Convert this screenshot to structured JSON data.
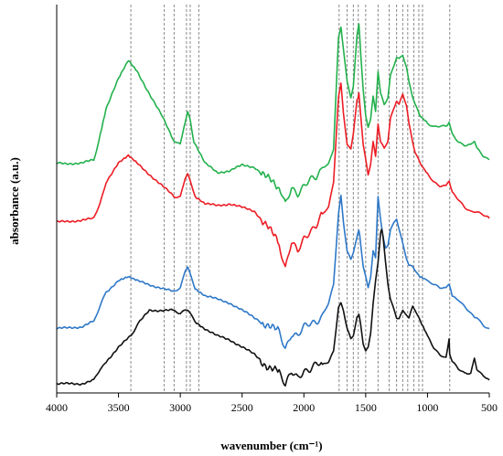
{
  "chart_data": {
    "type": "line",
    "title": "",
    "xlabel": "wavenumber (cm⁻¹)",
    "ylabel": "absorbance (a.u.)",
    "xlim": [
      4000,
      500
    ],
    "x_reversed": true,
    "x_ticks": [
      4000,
      3500,
      3000,
      2500,
      2000,
      1500,
      1000,
      500
    ],
    "y_ticks_shown": false,
    "ylim": [
      0,
      100
    ],
    "grid": false,
    "legend": "none",
    "reference_lines": [
      3400,
      3130,
      3050,
      2950,
      2920,
      2850,
      1715,
      1650,
      1600,
      1560,
      1500,
      1400,
      1310,
      1250,
      1200,
      1160,
      1110,
      1070,
      1040,
      820
    ],
    "series": [
      {
        "color": "#22b14c",
        "points": [
          [
            4000,
            60
          ],
          [
            3800,
            60
          ],
          [
            3700,
            61
          ],
          [
            3660,
            66
          ],
          [
            3600,
            75
          ],
          [
            3500,
            83
          ],
          [
            3420,
            88
          ],
          [
            3350,
            85
          ],
          [
            3250,
            79
          ],
          [
            3150,
            73
          ],
          [
            3050,
            66
          ],
          [
            3000,
            65
          ],
          [
            2970,
            70
          ],
          [
            2940,
            74
          ],
          [
            2920,
            72
          ],
          [
            2890,
            66
          ],
          [
            2800,
            60
          ],
          [
            2700,
            57.5
          ],
          [
            2600,
            58
          ],
          [
            2500,
            59.5
          ],
          [
            2400,
            59
          ],
          [
            2300,
            56
          ],
          [
            2200,
            53
          ],
          [
            2150,
            49
          ],
          [
            2100,
            54
          ],
          [
            2050,
            52
          ],
          [
            2000,
            53.5
          ],
          [
            1950,
            55
          ],
          [
            1900,
            56
          ],
          [
            1850,
            59
          ],
          [
            1800,
            60
          ],
          [
            1760,
            64
          ],
          [
            1720,
            94
          ],
          [
            1700,
            97
          ],
          [
            1680,
            91
          ],
          [
            1650,
            82
          ],
          [
            1620,
            78
          ],
          [
            1600,
            81
          ],
          [
            1570,
            95
          ],
          [
            1555,
            98
          ],
          [
            1540,
            90
          ],
          [
            1520,
            80
          ],
          [
            1500,
            73
          ],
          [
            1480,
            70
          ],
          [
            1460,
            72
          ],
          [
            1440,
            78
          ],
          [
            1420,
            74
          ],
          [
            1400,
            85
          ],
          [
            1380,
            79
          ],
          [
            1350,
            76
          ],
          [
            1320,
            78
          ],
          [
            1300,
            84
          ],
          [
            1270,
            87
          ],
          [
            1250,
            89
          ],
          [
            1230,
            88.5
          ],
          [
            1200,
            89.5
          ],
          [
            1170,
            86
          ],
          [
            1150,
            82
          ],
          [
            1120,
            78
          ],
          [
            1100,
            76
          ],
          [
            1060,
            73
          ],
          [
            1000,
            71
          ],
          [
            950,
            70
          ],
          [
            900,
            70
          ],
          [
            850,
            70
          ],
          [
            825,
            71
          ],
          [
            800,
            68
          ],
          [
            750,
            66
          ],
          [
            700,
            65
          ],
          [
            650,
            65
          ],
          [
            620,
            66
          ],
          [
            600,
            64
          ],
          [
            550,
            62
          ],
          [
            500,
            61
          ]
        ]
      },
      {
        "color": "#ed1c24",
        "points": [
          [
            4000,
            44
          ],
          [
            3800,
            44.5
          ],
          [
            3700,
            45
          ],
          [
            3650,
            49
          ],
          [
            3600,
            55
          ],
          [
            3500,
            60
          ],
          [
            3420,
            62
          ],
          [
            3350,
            60
          ],
          [
            3250,
            57
          ],
          [
            3150,
            54
          ],
          [
            3050,
            51
          ],
          [
            3000,
            51
          ],
          [
            2960,
            56
          ],
          [
            2940,
            57
          ],
          [
            2920,
            55
          ],
          [
            2880,
            51
          ],
          [
            2800,
            49
          ],
          [
            2700,
            48.5
          ],
          [
            2600,
            49
          ],
          [
            2500,
            48
          ],
          [
            2400,
            47
          ],
          [
            2300,
            43
          ],
          [
            2200,
            38
          ],
          [
            2150,
            31
          ],
          [
            2100,
            38
          ],
          [
            2050,
            36
          ],
          [
            2000,
            40
          ],
          [
            1950,
            42
          ],
          [
            1900,
            43
          ],
          [
            1850,
            46
          ],
          [
            1800,
            48
          ],
          [
            1760,
            55
          ],
          [
            1720,
            78
          ],
          [
            1700,
            82
          ],
          [
            1680,
            74
          ],
          [
            1650,
            65
          ],
          [
            1620,
            64
          ],
          [
            1600,
            68
          ],
          [
            1570,
            77
          ],
          [
            1555,
            79
          ],
          [
            1540,
            73
          ],
          [
            1520,
            65
          ],
          [
            1500,
            61
          ],
          [
            1480,
            57
          ],
          [
            1460,
            60
          ],
          [
            1440,
            66
          ],
          [
            1420,
            62
          ],
          [
            1400,
            71
          ],
          [
            1380,
            66
          ],
          [
            1350,
            64
          ],
          [
            1320,
            66
          ],
          [
            1300,
            72
          ],
          [
            1270,
            75
          ],
          [
            1250,
            77
          ],
          [
            1230,
            76
          ],
          [
            1200,
            79
          ],
          [
            1170,
            76
          ],
          [
            1150,
            71
          ],
          [
            1120,
            66
          ],
          [
            1100,
            63
          ],
          [
            1060,
            60
          ],
          [
            1000,
            57
          ],
          [
            950,
            55
          ],
          [
            900,
            54
          ],
          [
            850,
            54
          ],
          [
            825,
            55
          ],
          [
            800,
            52
          ],
          [
            750,
            50
          ],
          [
            700,
            48
          ],
          [
            650,
            47
          ],
          [
            620,
            47
          ],
          [
            600,
            47
          ],
          [
            550,
            46
          ],
          [
            500,
            45
          ]
        ]
      },
      {
        "color": "#2e78c8",
        "points": [
          [
            4000,
            15
          ],
          [
            3800,
            15.5
          ],
          [
            3700,
            17
          ],
          [
            3650,
            21
          ],
          [
            3600,
            25
          ],
          [
            3500,
            28
          ],
          [
            3420,
            29
          ],
          [
            3350,
            28
          ],
          [
            3250,
            27
          ],
          [
            3150,
            26
          ],
          [
            3050,
            25
          ],
          [
            3000,
            26
          ],
          [
            2960,
            31
          ],
          [
            2940,
            32
          ],
          [
            2920,
            30
          ],
          [
            2880,
            26
          ],
          [
            2800,
            24
          ],
          [
            2700,
            23
          ],
          [
            2600,
            22
          ],
          [
            2500,
            20
          ],
          [
            2400,
            18
          ],
          [
            2300,
            16
          ],
          [
            2200,
            14
          ],
          [
            2150,
            10
          ],
          [
            2100,
            14
          ],
          [
            2050,
            13
          ],
          [
            2000,
            15
          ],
          [
            1950,
            16
          ],
          [
            1900,
            17
          ],
          [
            1850,
            19
          ],
          [
            1800,
            22
          ],
          [
            1760,
            27
          ],
          [
            1720,
            46
          ],
          [
            1700,
            51
          ],
          [
            1680,
            44
          ],
          [
            1650,
            36
          ],
          [
            1620,
            34
          ],
          [
            1600,
            36
          ],
          [
            1570,
            40
          ],
          [
            1555,
            42
          ],
          [
            1540,
            38
          ],
          [
            1520,
            32
          ],
          [
            1500,
            29
          ],
          [
            1480,
            26
          ],
          [
            1460,
            29
          ],
          [
            1440,
            36
          ],
          [
            1420,
            34
          ],
          [
            1400,
            51
          ],
          [
            1380,
            45
          ],
          [
            1360,
            40
          ],
          [
            1340,
            37
          ],
          [
            1320,
            38
          ],
          [
            1300,
            42
          ],
          [
            1270,
            44
          ],
          [
            1250,
            45
          ],
          [
            1230,
            42
          ],
          [
            1200,
            38
          ],
          [
            1170,
            34
          ],
          [
            1150,
            32
          ],
          [
            1120,
            32
          ],
          [
            1100,
            31
          ],
          [
            1060,
            29
          ],
          [
            1000,
            28
          ],
          [
            950,
            27
          ],
          [
            900,
            26
          ],
          [
            850,
            26
          ],
          [
            825,
            27
          ],
          [
            800,
            24
          ],
          [
            750,
            23
          ],
          [
            700,
            21
          ],
          [
            650,
            19
          ],
          [
            620,
            18
          ],
          [
            600,
            18
          ],
          [
            550,
            16
          ],
          [
            500,
            15
          ]
        ]
      },
      {
        "color": "#111111",
        "points": [
          [
            4000,
            0
          ],
          [
            3800,
            0
          ],
          [
            3700,
            1
          ],
          [
            3650,
            4
          ],
          [
            3600,
            6
          ],
          [
            3500,
            10
          ],
          [
            3400,
            13
          ],
          [
            3350,
            16
          ],
          [
            3250,
            20
          ],
          [
            3150,
            20
          ],
          [
            3050,
            20
          ],
          [
            3000,
            19
          ],
          [
            2960,
            20
          ],
          [
            2940,
            20
          ],
          [
            2920,
            19
          ],
          [
            2880,
            17
          ],
          [
            2800,
            15
          ],
          [
            2700,
            13
          ],
          [
            2600,
            12
          ],
          [
            2500,
            10
          ],
          [
            2400,
            8
          ],
          [
            2300,
            5
          ],
          [
            2200,
            3
          ],
          [
            2150,
            -1
          ],
          [
            2100,
            3
          ],
          [
            2050,
            2
          ],
          [
            2000,
            4
          ],
          [
            1950,
            4
          ],
          [
            1900,
            5
          ],
          [
            1850,
            5
          ],
          [
            1800,
            6
          ],
          [
            1760,
            9
          ],
          [
            1720,
            21
          ],
          [
            1700,
            22
          ],
          [
            1680,
            20
          ],
          [
            1650,
            15
          ],
          [
            1620,
            12
          ],
          [
            1600,
            13
          ],
          [
            1570,
            18
          ],
          [
            1555,
            19
          ],
          [
            1540,
            16
          ],
          [
            1520,
            11
          ],
          [
            1500,
            9
          ],
          [
            1480,
            10
          ],
          [
            1460,
            14
          ],
          [
            1440,
            22
          ],
          [
            1420,
            28
          ],
          [
            1400,
            33
          ],
          [
            1380,
            41
          ],
          [
            1370,
            42
          ],
          [
            1360,
            40
          ],
          [
            1340,
            33
          ],
          [
            1320,
            27
          ],
          [
            1300,
            23
          ],
          [
            1270,
            20
          ],
          [
            1250,
            18
          ],
          [
            1230,
            18
          ],
          [
            1200,
            20
          ],
          [
            1170,
            19
          ],
          [
            1150,
            18
          ],
          [
            1120,
            21
          ],
          [
            1100,
            20
          ],
          [
            1060,
            17
          ],
          [
            1000,
            13
          ],
          [
            950,
            10
          ],
          [
            900,
            8
          ],
          [
            850,
            7
          ],
          [
            825,
            12
          ],
          [
            820,
            8
          ],
          [
            800,
            6
          ],
          [
            750,
            4
          ],
          [
            700,
            3
          ],
          [
            650,
            3
          ],
          [
            620,
            7
          ],
          [
            600,
            4
          ],
          [
            550,
            2
          ],
          [
            500,
            1
          ]
        ]
      }
    ]
  }
}
